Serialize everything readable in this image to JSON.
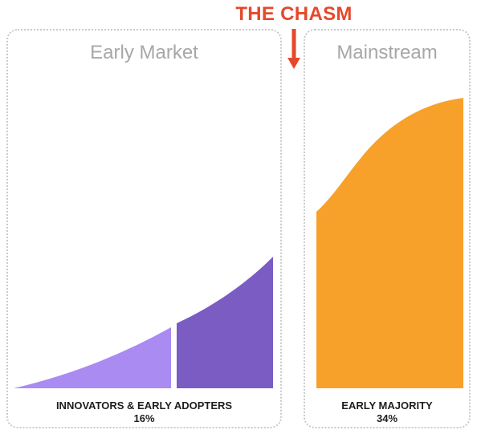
{
  "chasm": {
    "label": "THE CHASM",
    "color": "#e5492b"
  },
  "early_market": {
    "title": "Early Market",
    "segment_label": "INNOVATORS & EARLY ADOPTERS",
    "segment_value": "16%",
    "colors": {
      "innovators": "#a98bf2",
      "early_adopters": "#7a5cc2"
    }
  },
  "mainstream": {
    "title": "Mainstream",
    "segment_label": "EARLY MAJORITY",
    "segment_value": "34%",
    "color": "#f7a12a"
  }
}
